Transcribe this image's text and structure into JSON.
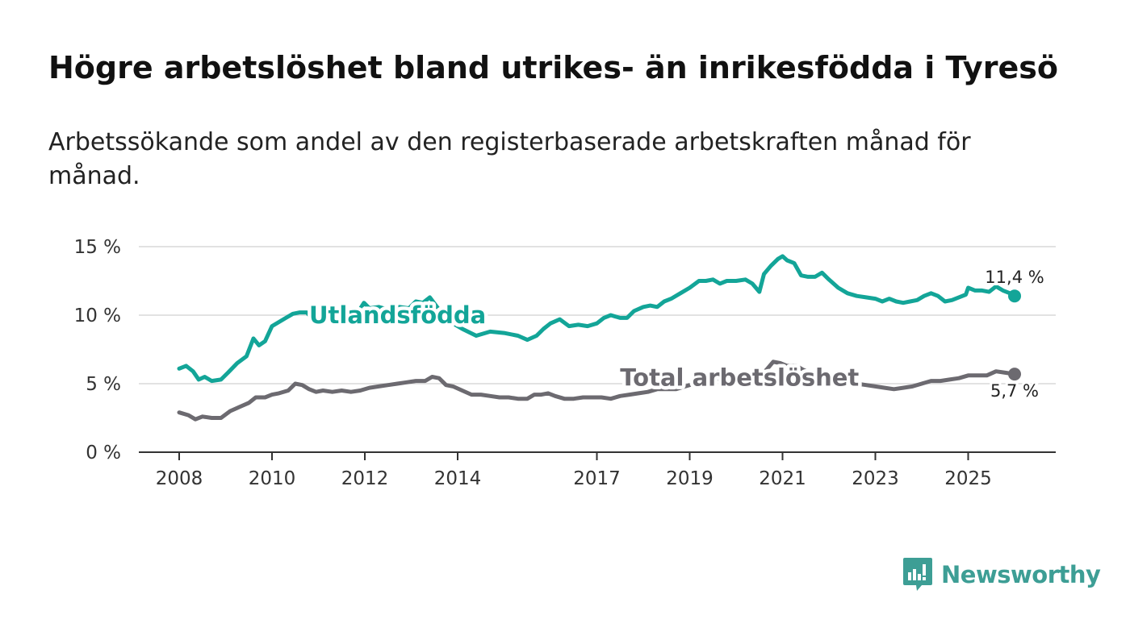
{
  "title": "Högre arbetslöshet bland utrikes- än inrikesfödda i Tyresö",
  "subtitle": "Arbetssökande som andel av den registerbaserade arbetskraften månad för månad.",
  "brand": {
    "name": "Newsworthy",
    "color": "#3d9e95"
  },
  "colors": {
    "utlandsfodda": "#13a598",
    "total": "#6c6a70",
    "grid": "#d9d9d9",
    "axis": "#333333"
  },
  "chart_data": {
    "type": "line",
    "title": "Högre arbetslöshet bland utrikes- än inrikesfödda i Tyresö",
    "xlabel": "",
    "ylabel": "",
    "ylim": [
      0,
      15
    ],
    "xlim": [
      2008,
      2026.6
    ],
    "grid": true,
    "legend": "inline labels",
    "x_ticks": [
      {
        "value": 2008,
        "label": "2008"
      },
      {
        "value": 2010,
        "label": "2010"
      },
      {
        "value": 2012,
        "label": "2012"
      },
      {
        "value": 2014,
        "label": "2014"
      },
      {
        "value": 2017,
        "label": "2017"
      },
      {
        "value": 2019,
        "label": "2019"
      },
      {
        "value": 2021,
        "label": "2021"
      },
      {
        "value": 2023,
        "label": "2023"
      },
      {
        "value": 2025,
        "label": "2025"
      }
    ],
    "y_ticks": [
      {
        "value": 0,
        "label": "0 %"
      },
      {
        "value": 5,
        "label": "5 %"
      },
      {
        "value": 10,
        "label": "10 %"
      },
      {
        "value": 15,
        "label": "15 %"
      }
    ],
    "series": [
      {
        "name": "Utlandsfödda",
        "label": "Utlandsfödda",
        "label_at": [
          2010.8,
          9.4
        ],
        "color": "#13a598",
        "end_label": "11,4 %",
        "points": [
          [
            2008.0,
            6.1
          ],
          [
            2008.15,
            6.3
          ],
          [
            2008.3,
            5.9
          ],
          [
            2008.42,
            5.3
          ],
          [
            2008.55,
            5.5
          ],
          [
            2008.7,
            5.2
          ],
          [
            2008.9,
            5.3
          ],
          [
            2009.05,
            5.8
          ],
          [
            2009.25,
            6.5
          ],
          [
            2009.45,
            7.0
          ],
          [
            2009.6,
            8.3
          ],
          [
            2009.72,
            7.8
          ],
          [
            2009.85,
            8.1
          ],
          [
            2010.0,
            9.2
          ],
          [
            2010.15,
            9.5
          ],
          [
            2010.3,
            9.8
          ],
          [
            2010.45,
            10.1
          ],
          [
            2010.6,
            10.2
          ],
          [
            2010.75,
            10.2
          ],
          [
            2010.85,
            9.8
          ],
          [
            2011.0,
            9.9
          ],
          [
            2011.2,
            10.0
          ],
          [
            2011.35,
            10.1
          ],
          [
            2011.48,
            10.8
          ],
          [
            2011.6,
            10.5
          ],
          [
            2011.7,
            9.9
          ],
          [
            2011.85,
            10.2
          ],
          [
            2011.98,
            10.9
          ],
          [
            2012.1,
            10.5
          ],
          [
            2012.3,
            10.6
          ],
          [
            2012.5,
            10.4
          ],
          [
            2012.75,
            10.6
          ],
          [
            2012.95,
            10.5
          ],
          [
            2013.1,
            11.0
          ],
          [
            2013.25,
            10.9
          ],
          [
            2013.4,
            11.3
          ],
          [
            2013.6,
            10.4
          ],
          [
            2013.8,
            9.6
          ],
          [
            2014.1,
            9.0
          ],
          [
            2014.4,
            8.5
          ],
          [
            2014.7,
            8.8
          ],
          [
            2015.0,
            8.7
          ],
          [
            2015.3,
            8.5
          ],
          [
            2015.5,
            8.2
          ],
          [
            2015.7,
            8.5
          ],
          [
            2015.85,
            9.0
          ],
          [
            2016.0,
            9.4
          ],
          [
            2016.2,
            9.7
          ],
          [
            2016.4,
            9.2
          ],
          [
            2016.6,
            9.3
          ],
          [
            2016.8,
            9.2
          ],
          [
            2017.0,
            9.4
          ],
          [
            2017.15,
            9.8
          ],
          [
            2017.3,
            10.0
          ],
          [
            2017.5,
            9.8
          ],
          [
            2017.65,
            9.8
          ],
          [
            2017.8,
            10.3
          ],
          [
            2018.0,
            10.6
          ],
          [
            2018.15,
            10.7
          ],
          [
            2018.3,
            10.6
          ],
          [
            2018.45,
            11.0
          ],
          [
            2018.6,
            11.2
          ],
          [
            2018.8,
            11.6
          ],
          [
            2019.0,
            12.0
          ],
          [
            2019.2,
            12.5
          ],
          [
            2019.35,
            12.5
          ],
          [
            2019.5,
            12.6
          ],
          [
            2019.65,
            12.3
          ],
          [
            2019.8,
            12.5
          ],
          [
            2020.0,
            12.5
          ],
          [
            2020.2,
            12.6
          ],
          [
            2020.35,
            12.3
          ],
          [
            2020.5,
            11.7
          ],
          [
            2020.6,
            13.0
          ],
          [
            2020.75,
            13.6
          ],
          [
            2020.9,
            14.1
          ],
          [
            2021.0,
            14.3
          ],
          [
            2021.1,
            14.0
          ],
          [
            2021.25,
            13.8
          ],
          [
            2021.4,
            12.9
          ],
          [
            2021.55,
            12.8
          ],
          [
            2021.7,
            12.8
          ],
          [
            2021.85,
            13.1
          ],
          [
            2022.0,
            12.6
          ],
          [
            2022.2,
            12.0
          ],
          [
            2022.4,
            11.6
          ],
          [
            2022.6,
            11.4
          ],
          [
            2022.8,
            11.3
          ],
          [
            2023.0,
            11.2
          ],
          [
            2023.15,
            11.0
          ],
          [
            2023.3,
            11.2
          ],
          [
            2023.45,
            11.0
          ],
          [
            2023.6,
            10.9
          ],
          [
            2023.75,
            11.0
          ],
          [
            2023.9,
            11.1
          ],
          [
            2024.05,
            11.4
          ],
          [
            2024.2,
            11.6
          ],
          [
            2024.35,
            11.4
          ],
          [
            2024.5,
            11.0
          ],
          [
            2024.65,
            11.1
          ],
          [
            2024.8,
            11.3
          ],
          [
            2024.95,
            11.5
          ],
          [
            2025.0,
            12.0
          ],
          [
            2025.15,
            11.8
          ],
          [
            2025.3,
            11.8
          ],
          [
            2025.45,
            11.7
          ],
          [
            2025.6,
            12.1
          ],
          [
            2025.75,
            11.8
          ],
          [
            2025.9,
            11.6
          ],
          [
            2026.0,
            11.4
          ]
        ]
      },
      {
        "name": "Total arbetslöshet",
        "label": "Total arbetslöshet",
        "label_at": [
          2017.5,
          4.85
        ],
        "color": "#6c6a70",
        "end_label": "5,7 %",
        "points": [
          [
            2008.0,
            2.9
          ],
          [
            2008.2,
            2.7
          ],
          [
            2008.35,
            2.4
          ],
          [
            2008.5,
            2.6
          ],
          [
            2008.7,
            2.5
          ],
          [
            2008.9,
            2.5
          ],
          [
            2009.1,
            3.0
          ],
          [
            2009.3,
            3.3
          ],
          [
            2009.5,
            3.6
          ],
          [
            2009.65,
            4.0
          ],
          [
            2009.85,
            4.0
          ],
          [
            2010.0,
            4.2
          ],
          [
            2010.15,
            4.3
          ],
          [
            2010.35,
            4.5
          ],
          [
            2010.5,
            5.0
          ],
          [
            2010.65,
            4.9
          ],
          [
            2010.8,
            4.6
          ],
          [
            2010.95,
            4.4
          ],
          [
            2011.1,
            4.5
          ],
          [
            2011.3,
            4.4
          ],
          [
            2011.5,
            4.5
          ],
          [
            2011.7,
            4.4
          ],
          [
            2011.9,
            4.5
          ],
          [
            2012.1,
            4.7
          ],
          [
            2012.3,
            4.8
          ],
          [
            2012.5,
            4.9
          ],
          [
            2012.7,
            5.0
          ],
          [
            2012.9,
            5.1
          ],
          [
            2013.1,
            5.2
          ],
          [
            2013.3,
            5.2
          ],
          [
            2013.45,
            5.5
          ],
          [
            2013.6,
            5.4
          ],
          [
            2013.75,
            4.9
          ],
          [
            2013.9,
            4.8
          ],
          [
            2014.1,
            4.5
          ],
          [
            2014.3,
            4.2
          ],
          [
            2014.5,
            4.2
          ],
          [
            2014.7,
            4.1
          ],
          [
            2014.9,
            4.0
          ],
          [
            2015.1,
            4.0
          ],
          [
            2015.3,
            3.9
          ],
          [
            2015.5,
            3.9
          ],
          [
            2015.65,
            4.2
          ],
          [
            2015.8,
            4.2
          ],
          [
            2015.95,
            4.3
          ],
          [
            2016.1,
            4.1
          ],
          [
            2016.3,
            3.9
          ],
          [
            2016.5,
            3.9
          ],
          [
            2016.7,
            4.0
          ],
          [
            2016.9,
            4.0
          ],
          [
            2017.1,
            4.0
          ],
          [
            2017.3,
            3.9
          ],
          [
            2017.5,
            4.1
          ],
          [
            2017.7,
            4.2
          ],
          [
            2017.9,
            4.3
          ],
          [
            2018.1,
            4.4
          ],
          [
            2018.3,
            4.6
          ],
          [
            2018.5,
            4.6
          ],
          [
            2018.7,
            4.6
          ],
          [
            2018.9,
            4.8
          ],
          [
            2019.1,
            5.0
          ],
          [
            2019.3,
            5.1
          ],
          [
            2019.5,
            5.3
          ],
          [
            2019.7,
            5.4
          ],
          [
            2019.9,
            5.5
          ],
          [
            2020.1,
            5.6
          ],
          [
            2020.3,
            5.5
          ],
          [
            2020.5,
            5.6
          ],
          [
            2020.65,
            6.0
          ],
          [
            2020.8,
            6.6
          ],
          [
            2020.95,
            6.5
          ],
          [
            2021.1,
            6.3
          ],
          [
            2021.3,
            6.3
          ],
          [
            2021.45,
            6.0
          ],
          [
            2021.6,
            5.8
          ],
          [
            2021.8,
            5.6
          ],
          [
            2022.0,
            5.3
          ],
          [
            2022.2,
            5.2
          ],
          [
            2022.4,
            5.1
          ],
          [
            2022.6,
            5.0
          ],
          [
            2022.8,
            4.9
          ],
          [
            2023.0,
            4.8
          ],
          [
            2023.2,
            4.7
          ],
          [
            2023.4,
            4.6
          ],
          [
            2023.6,
            4.7
          ],
          [
            2023.8,
            4.8
          ],
          [
            2024.0,
            5.0
          ],
          [
            2024.2,
            5.2
          ],
          [
            2024.4,
            5.2
          ],
          [
            2024.6,
            5.3
          ],
          [
            2024.8,
            5.4
          ],
          [
            2025.0,
            5.6
          ],
          [
            2025.2,
            5.6
          ],
          [
            2025.4,
            5.6
          ],
          [
            2025.6,
            5.9
          ],
          [
            2025.8,
            5.8
          ],
          [
            2026.0,
            5.7
          ]
        ]
      }
    ]
  }
}
